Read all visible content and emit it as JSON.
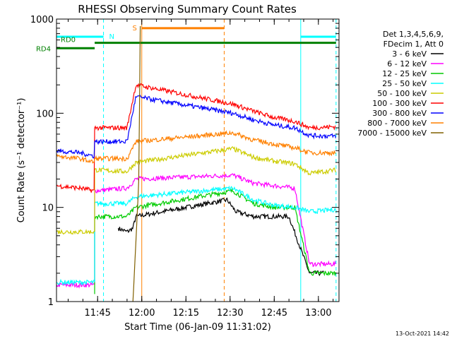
{
  "chart_data": {
    "type": "line",
    "title": "RHESSI Observing Summary Count Rates",
    "xlabel": "Start Time (06-Jan-09 11:31:02)",
    "ylabel": "Count Rate (s⁻¹ detector⁻¹)",
    "yscale": "log",
    "ylim": [
      1,
      1000
    ],
    "xlim": [
      "11:31:02",
      "13:07:00"
    ],
    "x_ticks": [
      "11:45",
      "12:00",
      "12:15",
      "12:30",
      "12:45",
      "13:00"
    ],
    "y_ticks": [
      "1",
      "10",
      "100",
      "1000"
    ],
    "timestamp": "13-Oct-2021 14:42",
    "legend_header": [
      "Det 1,3,4,5,6,9,",
      "FDecim 1, Att 0"
    ],
    "legend_position": "right",
    "grid": false,
    "series": [
      {
        "name": "3 - 6 keV",
        "color": "#000000",
        "points": [
          [
            "11:52:00",
            6.0
          ],
          [
            "11:55:00",
            5.5
          ],
          [
            "11:57:00",
            6.0
          ],
          [
            "11:58:00",
            8.0
          ],
          [
            "12:29:00",
            12.0
          ],
          [
            "12:32:00",
            9.0
          ],
          [
            "12:38:00",
            8.0
          ],
          [
            "12:45:00",
            8.0
          ],
          [
            "12:50:00",
            8.0
          ],
          [
            "12:57:00",
            2.0
          ],
          [
            "13:02:00",
            2.0
          ]
        ]
      },
      {
        "name": "6 - 12 keV",
        "color": "#ff00ff",
        "points": [
          [
            "11:31:02",
            1.5
          ],
          [
            "11:44:00",
            1.5
          ],
          [
            "11:44:00",
            15.0
          ],
          [
            "11:55:00",
            16.0
          ],
          [
            "11:58:00",
            20.0
          ],
          [
            "12:31:00",
            22.0
          ],
          [
            "12:38:00",
            18.0
          ],
          [
            "12:45:00",
            17.0
          ],
          [
            "12:52:00",
            16.0
          ],
          [
            "12:57:00",
            2.5
          ],
          [
            "13:06:00",
            2.5
          ]
        ]
      },
      {
        "name": "12 - 25 keV",
        "color": "#00cc00",
        "points": [
          [
            "11:44:00",
            1.2
          ],
          [
            "11:44:00",
            8.0
          ],
          [
            "11:55:00",
            8.0
          ],
          [
            "11:58:00",
            10.0
          ],
          [
            "12:31:00",
            15.0
          ],
          [
            "12:38:00",
            11.0
          ],
          [
            "12:45:00",
            10.0
          ],
          [
            "12:52:00",
            10.0
          ],
          [
            "12:57:00",
            2.0
          ],
          [
            "13:06:00",
            2.0
          ]
        ]
      },
      {
        "name": "25 - 50 keV",
        "color": "#00ffff",
        "points": [
          [
            "11:31:02",
            1.6
          ],
          [
            "11:44:00",
            1.6
          ],
          [
            "11:44:00",
            11.0
          ],
          [
            "11:55:00",
            11.0
          ],
          [
            "11:58:00",
            13.0
          ],
          [
            "12:31:00",
            16.0
          ],
          [
            "12:38:00",
            12.0
          ],
          [
            "12:45:00",
            10.5
          ],
          [
            "12:52:00",
            10.0
          ],
          [
            "12:57:00",
            9.0
          ],
          [
            "13:06:00",
            9.5
          ]
        ]
      },
      {
        "name": "50 - 100 keV",
        "color": "#cccc00",
        "points": [
          [
            "11:31:02",
            5.5
          ],
          [
            "11:44:00",
            5.5
          ],
          [
            "11:44:00",
            25.0
          ],
          [
            "11:55:00",
            24.0
          ],
          [
            "11:58:00",
            30.0
          ],
          [
            "12:31:00",
            42.0
          ],
          [
            "12:38:00",
            34.0
          ],
          [
            "12:45:00",
            31.0
          ],
          [
            "12:52:00",
            29.0
          ],
          [
            "12:57:00",
            23.0
          ],
          [
            "13:06:00",
            25.0
          ]
        ]
      },
      {
        "name": "100 - 300 keV",
        "color": "#ff0000",
        "points": [
          [
            "11:31:02",
            17.0
          ],
          [
            "11:39:00",
            16.0
          ],
          [
            "11:44:00",
            15.0
          ],
          [
            "11:44:00",
            70.0
          ],
          [
            "11:55:00",
            70.0
          ],
          [
            "11:58:00",
            200.0
          ],
          [
            "12:31:00",
            125.0
          ],
          [
            "12:38:00",
            105.0
          ],
          [
            "12:45:00",
            90.0
          ],
          [
            "12:52:00",
            82.0
          ],
          [
            "12:57:00",
            70.0
          ],
          [
            "13:06:00",
            72.0
          ]
        ]
      },
      {
        "name": "300 - 800 keV",
        "color": "#0000ff",
        "points": [
          [
            "11:31:02",
            40.0
          ],
          [
            "11:39:00",
            38.0
          ],
          [
            "11:44:00",
            35.0
          ],
          [
            "11:44:00",
            50.0
          ],
          [
            "11:55:00",
            50.0
          ],
          [
            "11:58:00",
            150.0
          ],
          [
            "12:31:00",
            100.0
          ],
          [
            "12:38:00",
            85.0
          ],
          [
            "12:45:00",
            75.0
          ],
          [
            "12:52:00",
            70.0
          ],
          [
            "12:57:00",
            58.0
          ],
          [
            "13:06:00",
            57.0
          ]
        ]
      },
      {
        "name": "800 - 7000 keV",
        "color": "#ff8000",
        "points": [
          [
            "11:31:02",
            35.0
          ],
          [
            "11:39:00",
            33.0
          ],
          [
            "11:44:00",
            30.0
          ],
          [
            "11:44:00",
            33.0
          ],
          [
            "11:55:00",
            33.0
          ],
          [
            "11:58:00",
            50.0
          ],
          [
            "12:31:00",
            62.0
          ],
          [
            "12:38:00",
            52.0
          ],
          [
            "12:45:00",
            47.0
          ],
          [
            "12:52:00",
            43.0
          ],
          [
            "12:57:00",
            38.0
          ],
          [
            "13:06:00",
            38.0
          ]
        ]
      },
      {
        "name": "7000 - 15000 keV",
        "color": "#806000",
        "points": [
          [
            "11:57:00",
            1.0
          ],
          [
            "11:58:00",
            4.0
          ],
          [
            "11:59:00",
            20.0
          ],
          [
            "11:59:30",
            1000.0
          ]
        ]
      }
    ],
    "annotations": {
      "state_labels": [
        "N",
        "S",
        "RD0",
        "RD4"
      ],
      "state_bars": [
        {
          "label": "N",
          "color": "#00ffff",
          "segments": [
            [
              "11:31:02",
              "11:47:00"
            ],
            [
              "12:54:00",
              "13:06:00"
            ]
          ],
          "y": 650
        },
        {
          "label": "S",
          "color": "#ff8000",
          "segments": [
            [
              "12:00:00",
              "12:28:00"
            ]
          ],
          "y": 800
        },
        {
          "label": "RD0",
          "color": "#008000",
          "segments": [
            [
              "11:44:00",
              "13:06:00"
            ]
          ],
          "y": 560
        },
        {
          "label": "RD4",
          "color": "#008000",
          "segments": [
            [
              "11:31:02",
              "11:44:00"
            ]
          ],
          "y": 490
        }
      ],
      "vlines": [
        {
          "time": "11:47:00",
          "color": "#00ffff",
          "dashed": true
        },
        {
          "time": "12:00:00",
          "color": "#ff8000",
          "dashed": false
        },
        {
          "time": "12:28:00",
          "color": "#ff8000",
          "dashed": true
        },
        {
          "time": "12:54:00",
          "color": "#00ffff",
          "dashed": false
        },
        {
          "time": "13:06:00",
          "color": "#00ffff",
          "dashed": true
        }
      ]
    }
  }
}
